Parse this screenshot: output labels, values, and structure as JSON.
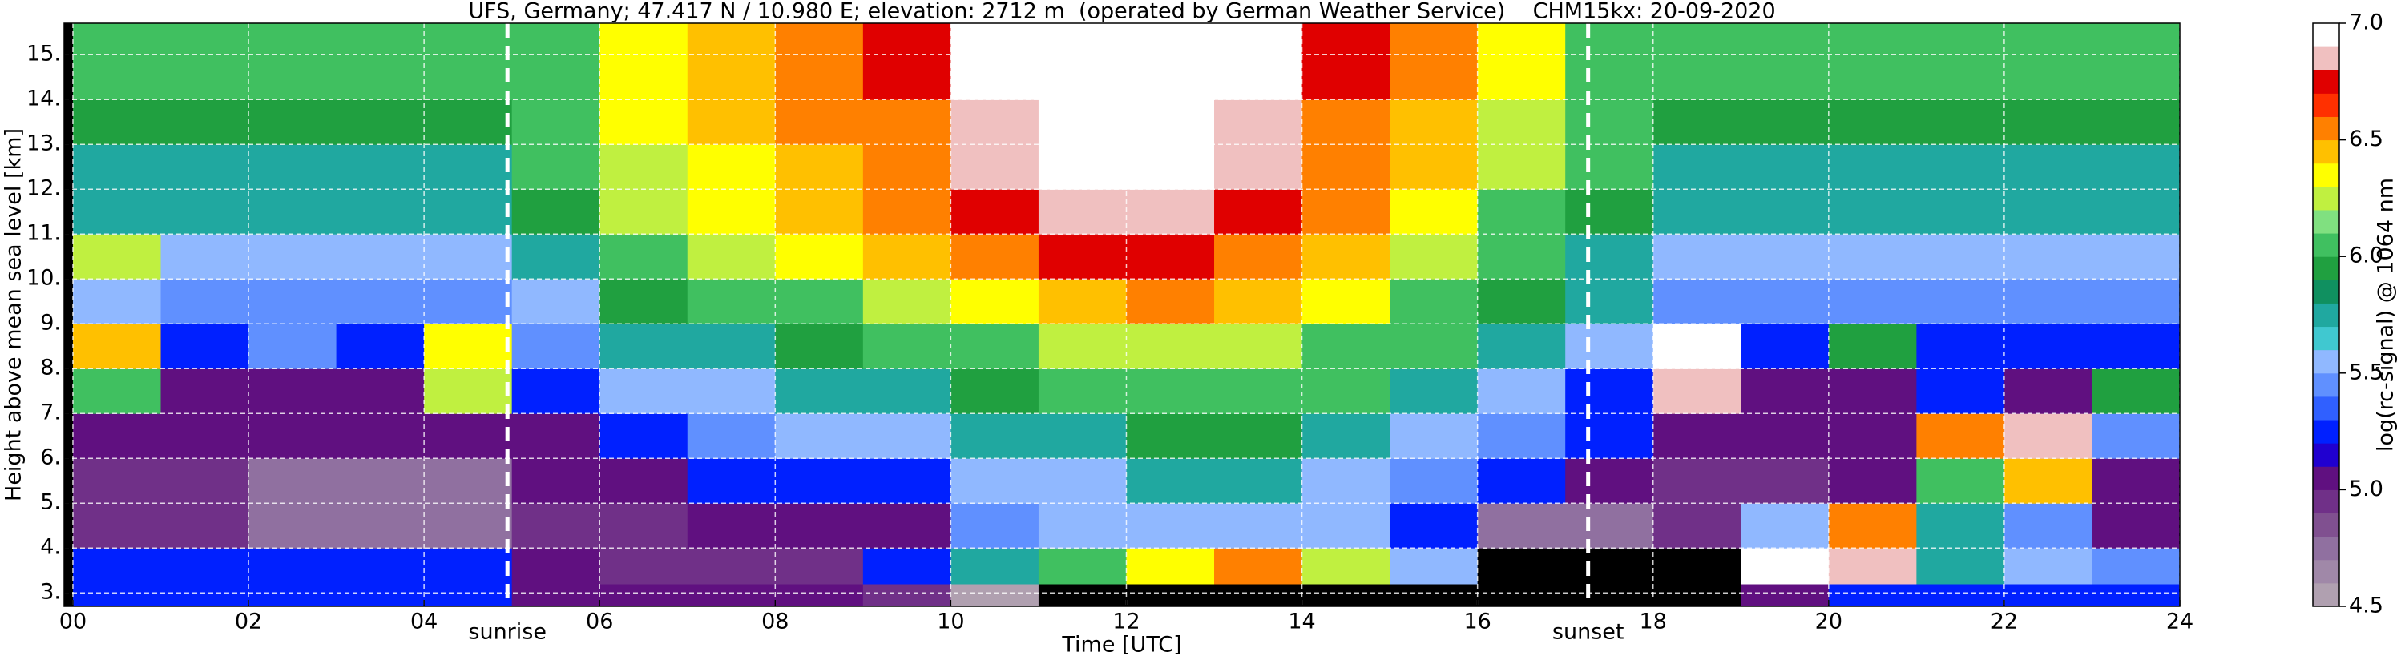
{
  "chart_data": {
    "type": "heatmap",
    "title": "UFS, Germany; 47.417 N / 10.980 E; elevation: 2712 m  (operated by German Weather Service)    CHM15kx: 20-09-2020",
    "x_label": "Time [UTC]",
    "y_label": "Height above mean sea level [km]",
    "colorbar_label": "log(rc-signal) @ 1064 nm",
    "xlim": [
      -0.1,
      24
    ],
    "ylim": [
      2.7,
      15.7
    ],
    "clim": [
      4.5,
      7.0
    ],
    "xticks": [
      {
        "value": 0,
        "label": "00"
      },
      {
        "value": 2,
        "label": "02"
      },
      {
        "value": 4,
        "label": "04"
      },
      {
        "value": 6,
        "label": "06"
      },
      {
        "value": 8,
        "label": "08"
      },
      10,
      12,
      14,
      16,
      18,
      20,
      22,
      24
    ],
    "yticks": [
      {
        "value": 3,
        "label": "3."
      },
      {
        "value": 4,
        "label": "4."
      },
      {
        "value": 5,
        "label": "5."
      },
      {
        "value": 6,
        "label": "6."
      },
      {
        "value": 7,
        "label": "7."
      },
      {
        "value": 8,
        "label": "8."
      },
      {
        "value": 9,
        "label": "9."
      },
      {
        "value": 10,
        "label": "10."
      },
      {
        "value": 11,
        "label": "11."
      },
      {
        "value": 12,
        "label": "12."
      },
      {
        "value": 13,
        "label": "13."
      },
      {
        "value": 14,
        "label": "14."
      },
      {
        "value": 15,
        "label": "15."
      }
    ],
    "cticks": [
      4.5,
      {
        "value": 5,
        "label": "5.0"
      },
      5.5,
      {
        "value": 6,
        "label": "6.0"
      },
      6.5,
      {
        "value": 7,
        "label": "7.0"
      }
    ],
    "grid": true,
    "colormap": [
      "#b0a0b0",
      "#a088a8",
      "#9070a0",
      "#805090",
      "#703088",
      "#601080",
      "#2000d0",
      "#0020ff",
      "#3060ff",
      "#6090ff",
      "#90b8ff",
      "#40c8d0",
      "#20a8a0",
      "#109060",
      "#20a040",
      "#40c060",
      "#80e080",
      "#c0f040",
      "#ffff00",
      "#ffc000",
      "#ff8000",
      "#ff3000",
      "#e00000",
      "#f0c0c0",
      "#ffffff"
    ],
    "under_color": "#000000",
    "xbins": [
      0,
      1,
      2,
      3,
      4,
      5,
      6,
      7,
      8,
      9,
      10,
      11,
      12,
      13,
      14,
      15,
      16,
      17,
      18,
      19,
      20,
      21,
      22,
      23,
      24
    ],
    "ybins": [
      2.7,
      3.2,
      4,
      5,
      6,
      7,
      8,
      9,
      10,
      11,
      12,
      13,
      14,
      15.7
    ],
    "values": [
      [
        5.2,
        5.2,
        5.2,
        5.2,
        5.2,
        5.1,
        5.0,
        5.0,
        5.0,
        4.9,
        4.6,
        4.4,
        4.4,
        4.4,
        4.4,
        4.4,
        4.4,
        4.4,
        4.4,
        5.1,
        5.2,
        5.2,
        5.2,
        5.2
      ],
      [
        5.3,
        5.3,
        5.2,
        5.3,
        5.2,
        5.0,
        4.9,
        4.9,
        4.9,
        5.2,
        5.8,
        6.1,
        6.3,
        6.5,
        6.2,
        5.6,
        4.4,
        4.4,
        4.4,
        7.0,
        6.8,
        5.8,
        5.6,
        5.4
      ],
      [
        4.9,
        4.9,
        4.7,
        4.7,
        4.7,
        4.9,
        4.9,
        5.0,
        5.0,
        5.1,
        5.4,
        5.5,
        5.6,
        5.6,
        5.5,
        5.3,
        4.8,
        4.8,
        4.9,
        5.6,
        6.6,
        5.7,
        5.4,
        5.0
      ],
      [
        4.9,
        4.9,
        4.8,
        4.8,
        4.8,
        5.0,
        5.1,
        5.2,
        5.3,
        5.3,
        5.5,
        5.6,
        5.7,
        5.7,
        5.6,
        5.4,
        5.2,
        5.0,
        4.9,
        4.9,
        5.0,
        6.0,
        6.4,
        5.0
      ],
      [
        5.0,
        5.0,
        5.0,
        5.0,
        5.0,
        5.1,
        5.3,
        5.4,
        5.5,
        5.5,
        5.7,
        5.8,
        5.9,
        5.9,
        5.8,
        5.6,
        5.4,
        5.2,
        5.0,
        5.0,
        5.0,
        6.6,
        6.8,
        5.4
      ],
      [
        6.0,
        5.1,
        5.1,
        5.1,
        6.2,
        5.2,
        5.5,
        5.6,
        5.7,
        5.8,
        5.9,
        6.0,
        6.1,
        6.1,
        6.0,
        5.8,
        5.6,
        5.3,
        6.8,
        5.1,
        5.1,
        5.3,
        5.1,
        5.9
      ],
      [
        6.4,
        5.2,
        5.4,
        5.2,
        6.3,
        5.4,
        5.7,
        5.8,
        5.9,
        6.0,
        6.1,
        6.2,
        6.2,
        6.2,
        6.1,
        6.0,
        5.8,
        5.5,
        7.0,
        5.2,
        5.9,
        5.2,
        5.2,
        5.3
      ],
      [
        5.5,
        5.4,
        5.4,
        5.4,
        5.4,
        5.6,
        5.9,
        6.0,
        6.1,
        6.2,
        6.3,
        6.4,
        6.5,
        6.4,
        6.3,
        6.1,
        5.9,
        5.7,
        5.4,
        5.4,
        5.4,
        5.4,
        5.4,
        5.4
      ],
      [
        6.2,
        5.6,
        5.6,
        5.6,
        5.6,
        5.8,
        6.1,
        6.2,
        6.3,
        6.4,
        6.5,
        6.7,
        6.7,
        6.6,
        6.4,
        6.2,
        6.0,
        5.8,
        5.6,
        5.6,
        5.6,
        5.6,
        5.6,
        5.6
      ],
      [
        5.7,
        5.7,
        5.7,
        5.7,
        5.7,
        5.9,
        6.2,
        6.3,
        6.4,
        6.5,
        6.7,
        6.8,
        6.8,
        6.7,
        6.5,
        6.3,
        6.1,
        5.9,
        5.7,
        5.7,
        5.7,
        5.7,
        5.7,
        5.7
      ],
      [
        5.8,
        5.8,
        5.8,
        5.8,
        5.8,
        6.0,
        6.2,
        6.3,
        6.4,
        6.6,
        6.8,
        6.9,
        6.9,
        6.8,
        6.6,
        6.4,
        6.2,
        6.0,
        5.8,
        5.8,
        5.8,
        5.8,
        5.8,
        5.8
      ],
      [
        5.9,
        5.9,
        5.9,
        5.9,
        5.9,
        6.0,
        6.3,
        6.4,
        6.5,
        6.6,
        6.8,
        6.9,
        6.9,
        6.8,
        6.6,
        6.4,
        6.2,
        6.0,
        5.9,
        5.9,
        5.9,
        5.9,
        5.9,
        5.9
      ],
      [
        6.0,
        6.0,
        6.0,
        6.0,
        6.0,
        6.1,
        6.3,
        6.4,
        6.5,
        6.7,
        6.9,
        7.0,
        7.0,
        6.9,
        6.7,
        6.5,
        6.3,
        6.1,
        6.0,
        6.0,
        6.0,
        6.0,
        6.0,
        6.0
      ]
    ],
    "annotations": [
      {
        "text": "sunrise",
        "x": 4.95
      },
      {
        "text": "sunset",
        "x": 17.26
      }
    ]
  }
}
